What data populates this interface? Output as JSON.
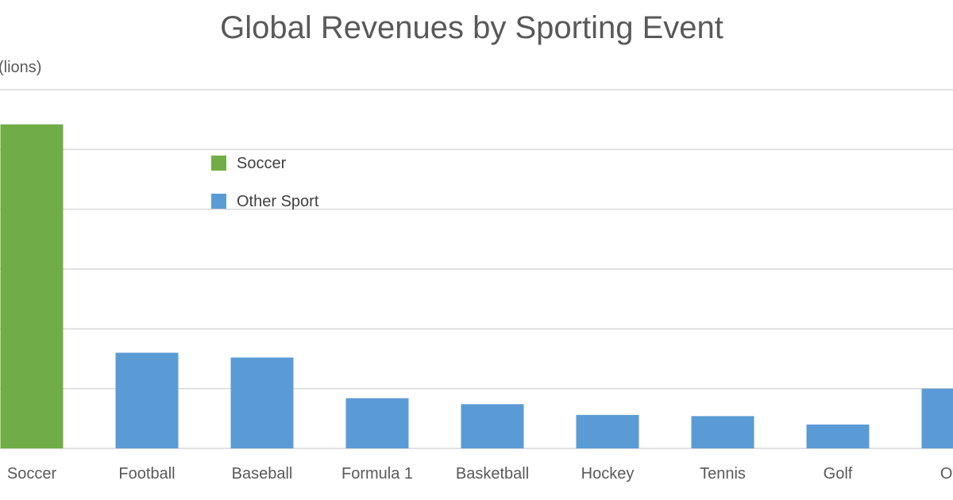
{
  "chart_data": {
    "type": "bar",
    "title": "Global Revenues by Sporting Event",
    "ylabel": "(lions)",
    "categories": [
      "Soccer",
      "Football",
      "Baseball",
      "Formula 1",
      "Basketball",
      "Hockey",
      "Tennis",
      "Golf",
      "Oth"
    ],
    "values": [
      27.1,
      8.0,
      7.6,
      4.2,
      3.7,
      2.8,
      2.7,
      2.0,
      5.0
    ],
    "series_assignment": [
      "Soccer",
      "Other Sport",
      "Other Sport",
      "Other Sport",
      "Other Sport",
      "Other Sport",
      "Other Sport",
      "Other Sport",
      "Other Sport"
    ],
    "legend": [
      {
        "name": "Soccer",
        "color": "#70ad47"
      },
      {
        "name": "Other Sport",
        "color": "#5b9bd5"
      }
    ],
    "ylim": [
      0,
      30
    ],
    "y_gridlines": [
      0,
      5,
      10,
      15,
      20,
      25,
      30
    ],
    "grid": true,
    "legend_placement": "top-left-inside"
  }
}
